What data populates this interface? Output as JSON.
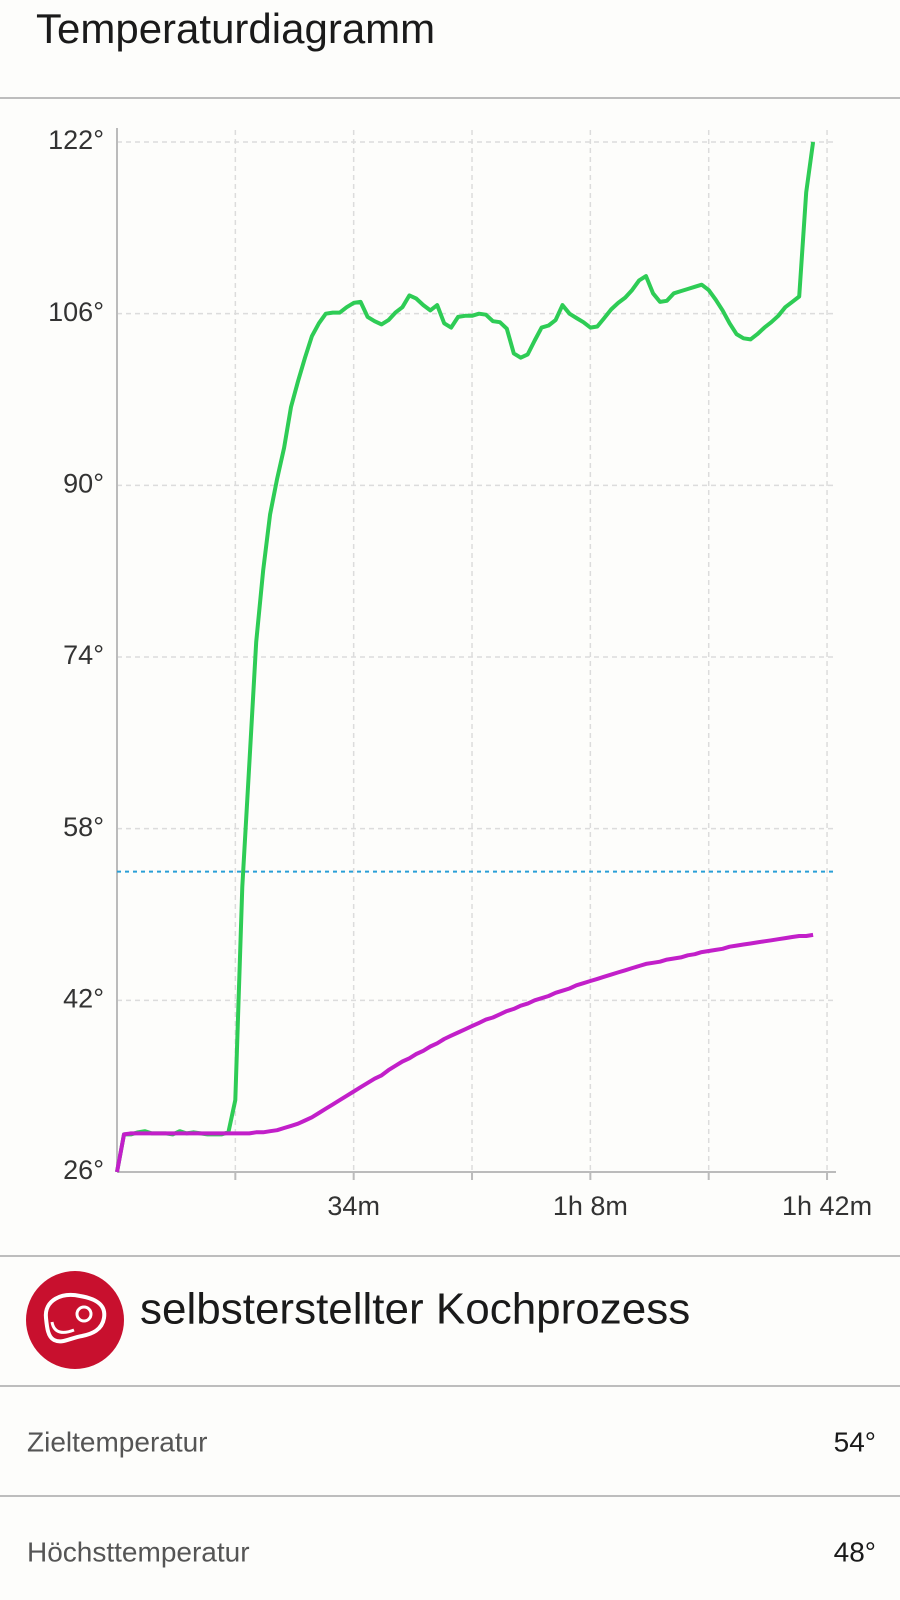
{
  "header": {
    "title": "Temperaturdiagramm"
  },
  "chart_data": {
    "type": "line",
    "x": [
      0,
      1,
      2,
      3,
      4,
      5,
      6,
      7,
      8,
      9,
      10,
      11,
      12,
      13,
      14,
      15,
      16,
      17,
      18,
      19,
      20,
      21,
      22,
      23,
      24,
      25,
      26,
      27,
      28,
      29,
      30,
      31,
      32,
      33,
      34,
      35,
      36,
      37,
      38,
      39,
      40,
      41,
      42,
      43,
      44,
      45,
      46,
      47,
      48,
      49,
      50,
      51,
      52,
      53,
      54,
      55,
      56,
      57,
      58,
      59,
      60,
      61,
      62,
      63,
      64,
      65,
      66,
      67,
      68,
      69,
      70,
      71,
      72,
      73,
      74,
      75,
      76,
      77,
      78,
      79,
      80,
      81,
      82,
      83,
      84,
      85,
      86,
      87,
      88,
      89,
      90,
      91,
      92,
      93,
      94,
      95,
      96,
      97,
      98,
      99,
      100
    ],
    "series": [
      {
        "color": "#2ecc55",
        "values": [
          26,
          29.5,
          29.5,
          29.7,
          29.8,
          29.6,
          29.6,
          29.6,
          29.5,
          29.8,
          29.6,
          29.7,
          29.6,
          29.5,
          29.5,
          29.5,
          29.7,
          32.7,
          52.6,
          64.0,
          75.4,
          82.1,
          87.3,
          90.6,
          93.5,
          97.3,
          99.7,
          101.9,
          103.9,
          105.1,
          106.0,
          106.1,
          106.1,
          106.6,
          107.0,
          107.1,
          105.7,
          105.3,
          105.0,
          105.4,
          106.1,
          106.6,
          107.7,
          107.4,
          106.8,
          106.3,
          106.8,
          105.1,
          104.7,
          105.7,
          105.8,
          105.8,
          106.0,
          105.9,
          105.3,
          105.2,
          104.6,
          102.3,
          101.9,
          102.2,
          103.5,
          104.7,
          104.9,
          105.4,
          106.8,
          106.0,
          105.6,
          105.2,
          104.7,
          104.8,
          105.6,
          106.4,
          107.0,
          107.5,
          108.2,
          109.1,
          109.5,
          107.9,
          107.1,
          107.2,
          107.9,
          108.1,
          108.3,
          108.5,
          108.7,
          108.2,
          107.3,
          106.3,
          105.1,
          104.1,
          103.7,
          103.6,
          104.1,
          104.7,
          105.2,
          105.8,
          106.6,
          107.1,
          107.6,
          117.3,
          122.0
        ]
      },
      {
        "color": "#c21fc9",
        "values": [
          26,
          29.5,
          29.6,
          29.6,
          29.6,
          29.6,
          29.6,
          29.6,
          29.6,
          29.6,
          29.6,
          29.6,
          29.6,
          29.6,
          29.6,
          29.6,
          29.6,
          29.6,
          29.6,
          29.6,
          29.7,
          29.7,
          29.8,
          29.9,
          30.1,
          30.3,
          30.5,
          30.8,
          31.1,
          31.5,
          31.9,
          32.3,
          32.7,
          33.1,
          33.5,
          33.9,
          34.3,
          34.7,
          35.0,
          35.5,
          35.9,
          36.3,
          36.6,
          37.0,
          37.3,
          37.7,
          38.0,
          38.4,
          38.7,
          39.0,
          39.3,
          39.6,
          39.9,
          40.2,
          40.4,
          40.7,
          41.0,
          41.2,
          41.5,
          41.7,
          42.0,
          42.2,
          42.4,
          42.7,
          42.9,
          43.1,
          43.4,
          43.6,
          43.8,
          44.0,
          44.2,
          44.4,
          44.6,
          44.8,
          45.0,
          45.2,
          45.4,
          45.5,
          45.6,
          45.8,
          45.9,
          46.0,
          46.2,
          46.3,
          46.5,
          46.6,
          46.7,
          46.8,
          47.0,
          47.1,
          47.2,
          47.3,
          47.4,
          47.5,
          47.6,
          47.7,
          47.8,
          47.9,
          48.0,
          48.0,
          48.1
        ]
      }
    ],
    "target_line": {
      "value": 54,
      "color": "#2a9fd6"
    },
    "xlim": [
      0,
      103
    ],
    "ylim": [
      26,
      122
    ],
    "xticks": [
      {
        "value": 17,
        "label": null
      },
      {
        "value": 34,
        "label": "34m"
      },
      {
        "value": 51,
        "label": null
      },
      {
        "value": 68,
        "label": "1h 8m"
      },
      {
        "value": 85,
        "label": null
      },
      {
        "value": 102,
        "label": "1h 42m"
      }
    ],
    "yticks": [
      {
        "value": 26,
        "label": "26°"
      },
      {
        "value": 42,
        "label": "42°"
      },
      {
        "value": 58,
        "label": "58°"
      },
      {
        "value": 74,
        "label": "74°"
      },
      {
        "value": 90,
        "label": "90°"
      },
      {
        "value": 106,
        "label": "106°"
      },
      {
        "value": 122,
        "label": "122°"
      }
    ],
    "grid": true
  },
  "program": {
    "title": "selbsterstellter Kochprozess"
  },
  "rows": [
    {
      "label": "Zieltemperatur",
      "value": "54°"
    },
    {
      "label": "Höchsttemperatur",
      "value": "48°"
    }
  ]
}
